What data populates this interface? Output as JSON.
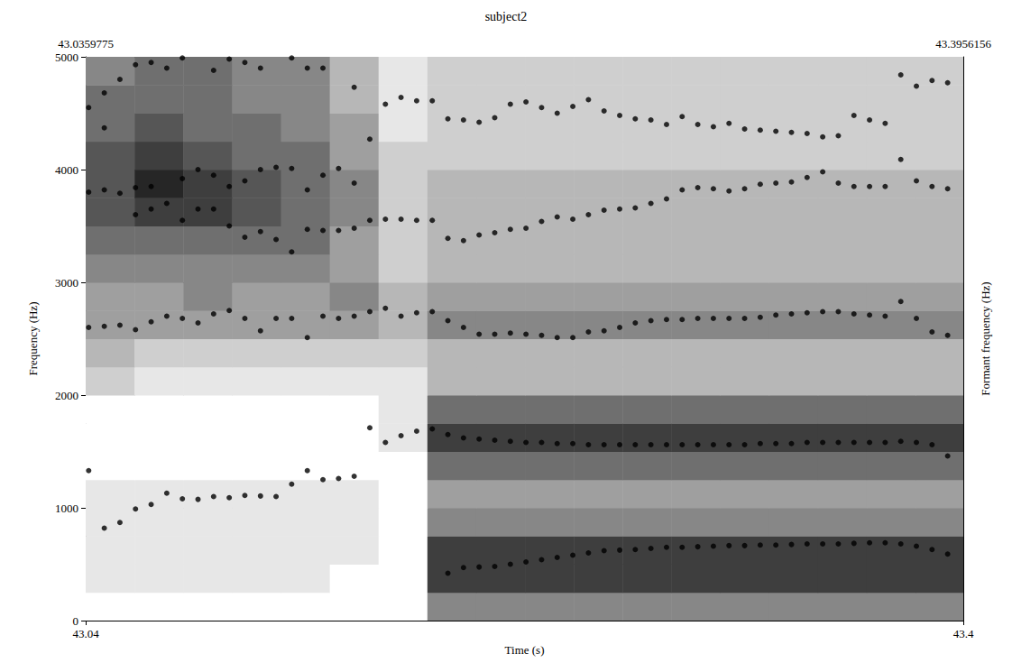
{
  "chart_data": {
    "type": "spectrogram",
    "title": "subject2",
    "xlabel": "Time (s)",
    "ylabel": "Frequency (Hz)",
    "formant_ylabel": "Formant frequency (Hz)",
    "xlim": [
      43.0359775,
      43.3956156
    ],
    "xticks": [
      {
        "value": 43.0359775,
        "label": "43.04"
      },
      {
        "value": 43.3956156,
        "label": "43.4"
      }
    ],
    "top_ticks": [
      {
        "value": 43.0359775,
        "label": "43.0359775"
      },
      {
        "value": 43.3956156,
        "label": "43.3956156"
      }
    ],
    "ylim": [
      0,
      5000
    ],
    "yticks": [
      0,
      1000,
      2000,
      3000,
      4000,
      5000
    ],
    "grid": true,
    "x": [
      43.0372,
      43.0436,
      43.05,
      43.0564,
      43.0628,
      43.0692,
      43.0756,
      43.082,
      43.0884,
      43.0948,
      43.1012,
      43.1076,
      43.114,
      43.1204,
      43.1268,
      43.1332,
      43.1396,
      43.146,
      43.1524,
      43.1588,
      43.1652,
      43.1716,
      43.178,
      43.1844,
      43.1908,
      43.1972,
      43.2036,
      43.21,
      43.2164,
      43.2228,
      43.2292,
      43.2356,
      43.242,
      43.2484,
      43.2548,
      43.2612,
      43.2676,
      43.274,
      43.2804,
      43.2868,
      43.2932,
      43.2996,
      43.306,
      43.3124,
      43.3188,
      43.3252,
      43.3316,
      43.338,
      43.3444,
      43.3508,
      43.3572,
      43.3636,
      43.37,
      43.3764,
      43.3828,
      43.3892
    ],
    "series": [
      {
        "color": "#000000",
        "marker": "circle",
        "values": [
          1330,
          820,
          870,
          990,
          1030,
          1130,
          1080,
          1075,
          1100,
          1090,
          1110,
          1105,
          1100,
          1210,
          1330,
          1250,
          1260,
          1280,
          1710,
          1580,
          1640,
          1680,
          1700,
          420,
          470,
          475,
          480,
          500,
          520,
          540,
          560,
          580,
          600,
          620,
          625,
          630,
          640,
          650,
          650,
          655,
          660,
          665,
          665,
          670,
          670,
          675,
          680,
          680,
          680,
          685,
          690,
          690,
          680,
          660,
          630,
          590
        ]
      },
      {
        "color": "#000000",
        "marker": "circle",
        "values": [
          2600,
          2610,
          2620,
          2580,
          2650,
          2700,
          2680,
          2640,
          2720,
          2750,
          2680,
          2570,
          2680,
          2680,
          2510,
          2700,
          2680,
          2700,
          2740,
          2770,
          2700,
          2730,
          2740,
          1650,
          1620,
          1610,
          1600,
          1590,
          1580,
          1580,
          1570,
          1570,
          1560,
          1560,
          1560,
          1560,
          1560,
          1560,
          1560,
          1560,
          1560,
          1560,
          1560,
          1570,
          1570,
          1570,
          1580,
          1580,
          1580,
          1580,
          1580,
          1580,
          1590,
          1580,
          1560,
          1460
        ]
      },
      {
        "color": "#000000",
        "marker": "circle",
        "values": [
          3800,
          3820,
          3790,
          3600,
          3650,
          3700,
          3550,
          3650,
          3650,
          3500,
          3400,
          3450,
          3380,
          3270,
          3470,
          3460,
          3460,
          3480,
          3550,
          3560,
          3560,
          3550,
          3550,
          2660,
          2600,
          2540,
          2540,
          2550,
          2540,
          2530,
          2510,
          2510,
          2560,
          2570,
          2600,
          2640,
          2660,
          2670,
          2670,
          2680,
          2680,
          2680,
          2680,
          2690,
          2710,
          2720,
          2730,
          2740,
          2740,
          2720,
          2710,
          2700,
          2830,
          2680,
          2560,
          2530
        ]
      },
      {
        "color": "#000000",
        "marker": "circle",
        "values": [
          4550,
          4370,
          4800,
          3840,
          3850,
          4900,
          3920,
          4000,
          3950,
          3850,
          3900,
          4000,
          4020,
          4010,
          3820,
          3950,
          4010,
          3880,
          4270,
          4580,
          4640,
          4610,
          4610,
          3390,
          3370,
          3420,
          3440,
          3470,
          3480,
          3540,
          3580,
          3560,
          3600,
          3640,
          3650,
          3660,
          3700,
          3740,
          3820,
          3840,
          3830,
          3810,
          3830,
          3870,
          3880,
          3890,
          3930,
          3980,
          3880,
          3850,
          3850,
          3850,
          4090,
          3900,
          3850,
          3830
        ]
      },
      {
        "color": "#000000",
        "marker": "circle",
        "values": [
          null,
          4680,
          null,
          4930,
          4950,
          null,
          4990,
          null,
          4880,
          4980,
          4950,
          4900,
          null,
          4990,
          4900,
          4900,
          null,
          4730,
          null,
          null,
          null,
          null,
          null,
          4450,
          4440,
          4420,
          4460,
          4580,
          4600,
          4550,
          4500,
          4560,
          4620,
          4520,
          4480,
          4450,
          4440,
          4400,
          4470,
          4400,
          4380,
          4410,
          4360,
          4350,
          4340,
          4330,
          4320,
          4290,
          4300,
          4480,
          4440,
          4410,
          4840,
          4740,
          4790,
          4770
        ]
      }
    ],
    "spectrogram": {
      "time_edges": [
        43.0359775,
        43.056,
        43.076,
        43.096,
        43.116,
        43.136,
        43.156,
        43.176,
        43.196,
        43.216,
        43.236,
        43.256,
        43.276,
        43.296,
        43.316,
        43.336,
        43.356,
        43.376,
        43.3956156
      ],
      "freq_edges": [
        0,
        250,
        500,
        750,
        1000,
        1250,
        1500,
        1750,
        2000,
        2250,
        2500,
        2750,
        3000,
        3250,
        3500,
        3750,
        4000,
        4250,
        4500,
        4750,
        5000
      ],
      "darkness_range": [
        0,
        9
      ],
      "darkness": [
        [
          0,
          0,
          0,
          0,
          0,
          0,
          0,
          5,
          5,
          5,
          5,
          5,
          5,
          5,
          5,
          5,
          5,
          5
        ],
        [
          1,
          1,
          1,
          1,
          1,
          0,
          0,
          8,
          8,
          8,
          8,
          8,
          8,
          8,
          8,
          8,
          8,
          8
        ],
        [
          1,
          1,
          1,
          1,
          1,
          1,
          0,
          8,
          8,
          8,
          8,
          8,
          8,
          8,
          8,
          8,
          8,
          8
        ],
        [
          1,
          1,
          1,
          1,
          1,
          1,
          0,
          5,
          5,
          5,
          5,
          5,
          5,
          5,
          5,
          5,
          5,
          5
        ],
        [
          1,
          1,
          1,
          1,
          1,
          1,
          0,
          4,
          4,
          4,
          4,
          4,
          4,
          4,
          4,
          4,
          4,
          4
        ],
        [
          0,
          0,
          0,
          0,
          0,
          0,
          0,
          6,
          6,
          6,
          6,
          6,
          6,
          6,
          6,
          6,
          6,
          6
        ],
        [
          0,
          0,
          0,
          0,
          0,
          0,
          1,
          8,
          8,
          8,
          8,
          8,
          8,
          8,
          8,
          8,
          8,
          8
        ],
        [
          0,
          0,
          0,
          0,
          0,
          0,
          1,
          6,
          6,
          6,
          6,
          6,
          6,
          6,
          6,
          6,
          6,
          6
        ],
        [
          2,
          1,
          1,
          1,
          1,
          1,
          1,
          3,
          3,
          3,
          3,
          3,
          3,
          3,
          3,
          3,
          3,
          3
        ],
        [
          3,
          2,
          2,
          2,
          2,
          2,
          2,
          3,
          3,
          3,
          3,
          3,
          3,
          3,
          3,
          3,
          3,
          3
        ],
        [
          4,
          4,
          4,
          4,
          4,
          4,
          3,
          5,
          5,
          5,
          5,
          5,
          5,
          5,
          5,
          5,
          5,
          5
        ],
        [
          4,
          4,
          5,
          4,
          4,
          5,
          3,
          4,
          4,
          4,
          4,
          4,
          4,
          4,
          4,
          4,
          4,
          4
        ],
        [
          5,
          5,
          5,
          5,
          5,
          4,
          2,
          3,
          3,
          3,
          3,
          3,
          3,
          3,
          3,
          3,
          3,
          3
        ],
        [
          6,
          6,
          6,
          6,
          6,
          4,
          2,
          3,
          3,
          3,
          3,
          3,
          3,
          3,
          3,
          3,
          3,
          3
        ],
        [
          7,
          8,
          8,
          7,
          6,
          5,
          2,
          3,
          3,
          3,
          3,
          3,
          3,
          3,
          3,
          3,
          3,
          3
        ],
        [
          7,
          9,
          8,
          7,
          6,
          5,
          2,
          3,
          3,
          3,
          3,
          3,
          3,
          3,
          3,
          3,
          3,
          3
        ],
        [
          7,
          8,
          7,
          6,
          6,
          4,
          2,
          2,
          2,
          2,
          2,
          2,
          2,
          2,
          2,
          2,
          2,
          2
        ],
        [
          6,
          7,
          6,
          6,
          5,
          4,
          1,
          2,
          2,
          2,
          2,
          2,
          2,
          2,
          2,
          2,
          2,
          2
        ],
        [
          6,
          6,
          6,
          5,
          5,
          3,
          1,
          2,
          2,
          2,
          2,
          2,
          2,
          2,
          2,
          2,
          2,
          2
        ],
        [
          5,
          6,
          6,
          5,
          5,
          3,
          1,
          2,
          2,
          2,
          2,
          2,
          2,
          2,
          2,
          2,
          2,
          2
        ]
      ]
    }
  }
}
